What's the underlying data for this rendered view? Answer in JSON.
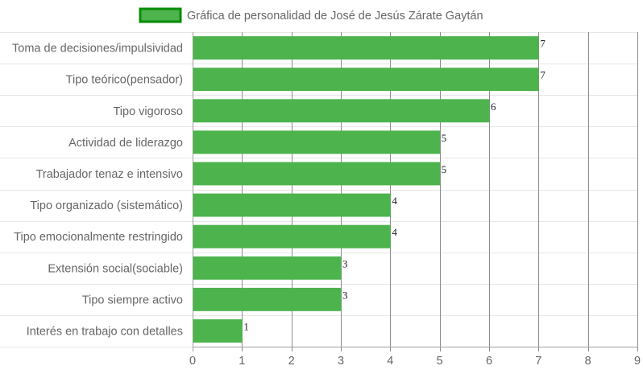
{
  "chart_data": {
    "type": "bar",
    "orientation": "horizontal",
    "title": "",
    "categories": [
      "Toma de decisiones/impulsividad",
      "Tipo teórico(pensador)",
      "Tipo vigoroso",
      "Actividad de liderazgo",
      "Trabajador tenaz e intensivo",
      "Tipo organizado (sistemático)",
      "Tipo emocionalmente restringido",
      "Extensión social(sociable)",
      "Tipo siempre activo",
      "Interés en trabajo con detalles"
    ],
    "series": [
      {
        "name": "Gráfica de personalidad de José de Jesús Zárate Gaytán",
        "values": [
          7,
          7,
          6,
          5,
          5,
          4,
          4,
          3,
          3,
          1
        ],
        "color": "#4db34d",
        "border_color": "#078d07"
      }
    ],
    "xlim": [
      0,
      9
    ],
    "x_ticks": [
      "0",
      "1",
      "2",
      "3",
      "4",
      "5",
      "6",
      "7",
      "8",
      "9"
    ],
    "xlabel": "",
    "ylabel": "",
    "grid": true,
    "legend_position": "top-center",
    "data_labels": true
  }
}
